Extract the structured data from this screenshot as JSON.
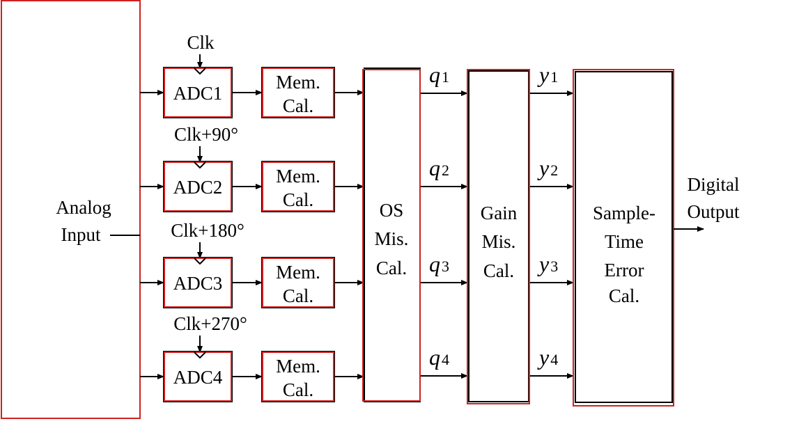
{
  "analog_input": {
    "line1": "Analog",
    "line2": "Input"
  },
  "adc_rows": [
    {
      "clock": "Clk",
      "adc": "ADC1",
      "mem_line1": "Mem.",
      "mem_line2": "Cal.",
      "q": "q",
      "q_sub": "1",
      "y": "y",
      "y_sub": "1"
    },
    {
      "clock": "Clk+90°",
      "adc": "ADC2",
      "mem_line1": "Mem.",
      "mem_line2": "Cal.",
      "q": "q",
      "q_sub": "2",
      "y": "y",
      "y_sub": "2"
    },
    {
      "clock": "Clk+180°",
      "adc": "ADC3",
      "mem_line1": "Mem.",
      "mem_line2": "Cal.",
      "q": "q",
      "q_sub": "3",
      "y": "y",
      "y_sub": "3"
    },
    {
      "clock": "Clk+270°",
      "adc": "ADC4",
      "mem_line1": "Mem.",
      "mem_line2": "Cal.",
      "q": "q",
      "q_sub": "4",
      "y": "y",
      "y_sub": "4"
    }
  ],
  "os_block": {
    "line1": "OS",
    "line2": "Mis.",
    "line3": "Cal."
  },
  "gain_block": {
    "line1": "Gain",
    "line2": "Mis.",
    "line3": "Cal."
  },
  "sample_block": {
    "line1": "Sample-",
    "line2": "Time",
    "line3": "Error",
    "line4": "Cal."
  },
  "output": {
    "line1": "Digital",
    "line2": "Output"
  },
  "colors": {
    "block_outline": "#cc2222",
    "line": "#000000"
  }
}
